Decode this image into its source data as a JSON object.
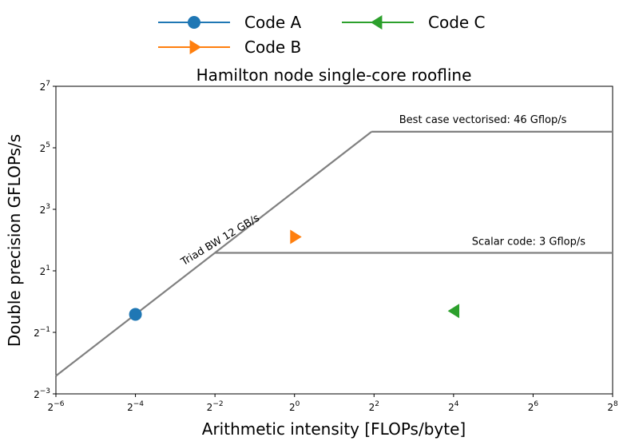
{
  "chart_data": {
    "type": "line",
    "title": "Hamilton node single-core roofline",
    "xlabel": "Arithmetic intensity [FLOPs/byte]",
    "ylabel": "Double precision GFLOPs/s",
    "xscale": "log2",
    "yscale": "log2",
    "xlim": [
      0.015625,
      256
    ],
    "ylim": [
      0.125,
      128
    ],
    "grid": false,
    "legend_position": "top-center",
    "x_ticks": [
      {
        "value": 0.015625,
        "base": "2",
        "exp": "−6"
      },
      {
        "value": 0.0625,
        "base": "2",
        "exp": "−4"
      },
      {
        "value": 0.25,
        "base": "2",
        "exp": "−2"
      },
      {
        "value": 1,
        "base": "2",
        "exp": "0"
      },
      {
        "value": 4,
        "base": "2",
        "exp": "2"
      },
      {
        "value": 16,
        "base": "2",
        "exp": "4"
      },
      {
        "value": 64,
        "base": "2",
        "exp": "6"
      },
      {
        "value": 256,
        "base": "2",
        "exp": "8"
      }
    ],
    "y_ticks": [
      {
        "value": 0.125,
        "base": "2",
        "exp": "−3"
      },
      {
        "value": 0.5,
        "base": "2",
        "exp": "−1"
      },
      {
        "value": 2,
        "base": "2",
        "exp": "1"
      },
      {
        "value": 8,
        "base": "2",
        "exp": "3"
      },
      {
        "value": 32,
        "base": "2",
        "exp": "5"
      },
      {
        "value": 128,
        "base": "2",
        "exp": "7"
      }
    ],
    "roofline": {
      "color": "#808080",
      "bandwidth_line": {
        "x": [
          0.015625,
          3.83
        ],
        "y": [
          0.1875,
          46
        ]
      },
      "vectorised_ceiling": {
        "x": [
          3.83,
          256
        ],
        "y": [
          46,
          46
        ]
      },
      "scalar_ceiling": {
        "x": [
          0.25,
          256
        ],
        "y": [
          3,
          3
        ]
      }
    },
    "annotations": [
      {
        "text": "Best case vectorised: 46 Gflop/s",
        "x": 6.2,
        "y": 56
      },
      {
        "text": "Scalar code: 3 Gflop/s",
        "x": 22,
        "y": 3.6
      },
      {
        "text": "Triad BW 12 GB/s",
        "x": 0.145,
        "y": 2.25,
        "rotation": -31
      }
    ],
    "series": [
      {
        "name": "Code A",
        "x": [
          0.0625
        ],
        "y": [
          0.75
        ],
        "marker": "circle",
        "color": "#1f77b4"
      },
      {
        "name": "Code B",
        "x": [
          1.0
        ],
        "y": [
          4.3
        ],
        "marker": "triangle-right",
        "color": "#ff7f0e"
      },
      {
        "name": "Code C",
        "x": [
          16.4
        ],
        "y": [
          0.81
        ],
        "marker": "triangle-left",
        "color": "#2ca02c"
      }
    ]
  }
}
